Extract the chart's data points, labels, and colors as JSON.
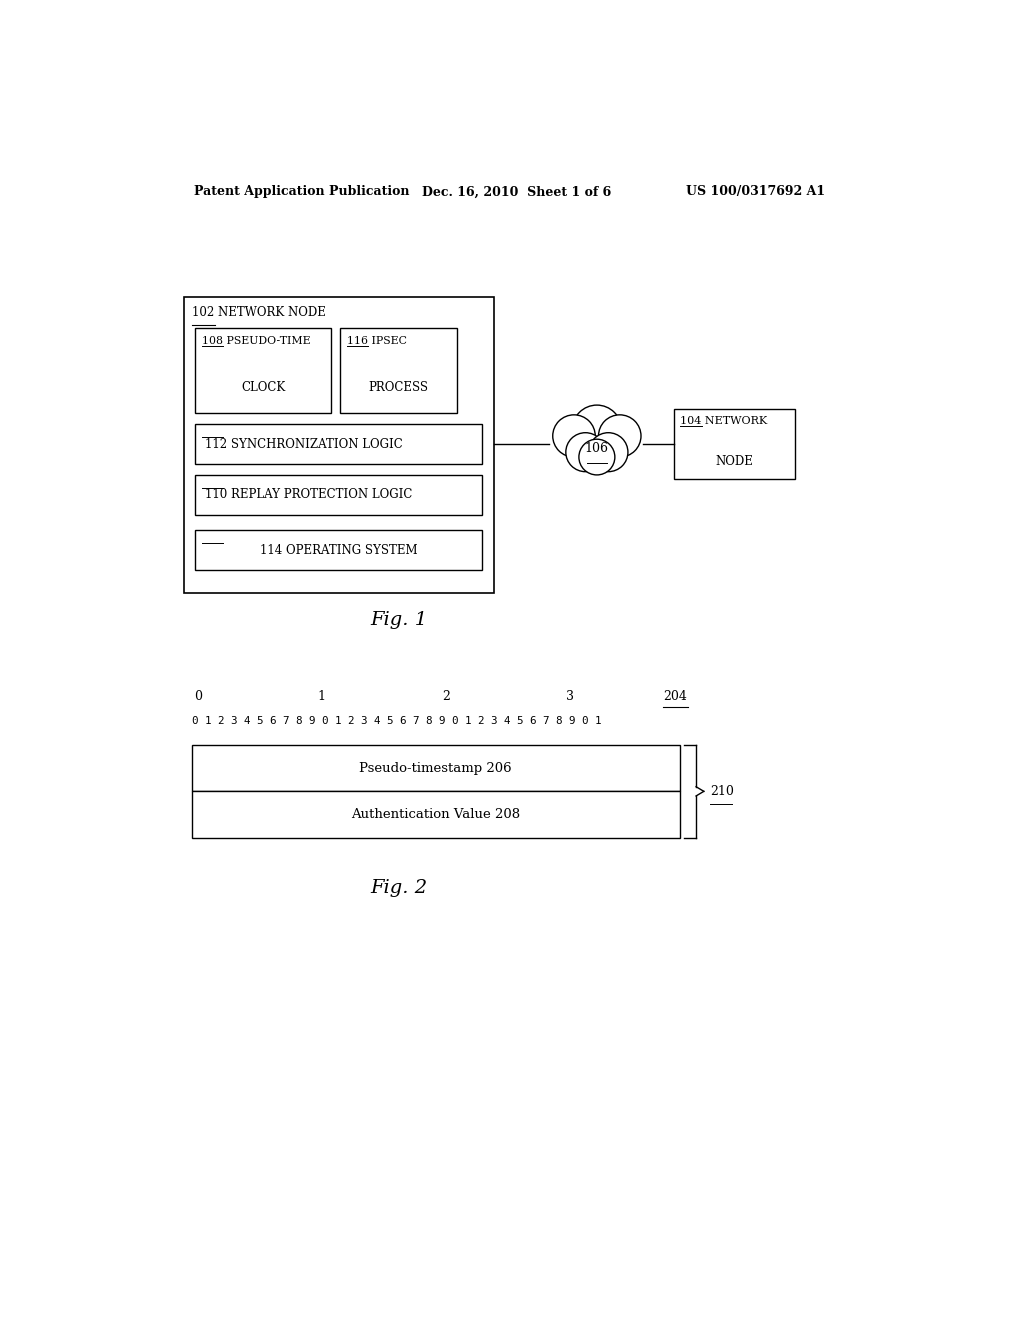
{
  "bg_color": "#ffffff",
  "header_left": "Patent Application Publication",
  "header_mid": "Dec. 16, 2010  Sheet 1 of 6",
  "header_right": "US 100/0317692 A1",
  "fig1_label": "Fig. 1",
  "fig2_label": "Fig. 2",
  "node102_label": "102 NETWORK NODE",
  "box108_line1": "108 PSEUDO-TIME",
  "box108_line2": "CLOCK",
  "box116_line1": "116 IPSEC",
  "box116_line2": "PROCESS",
  "box112_label": "112 SYNCHRONIZATION LOGIC",
  "box110_label": "110 REPLAY PROTECTION LOGIC",
  "box114_label": "114 OPERATING SYSTEM",
  "cloud106_label": "106",
  "node104_line1": "104 NETWORK",
  "node104_line2": "NODE",
  "fig2_204": "204",
  "fig2_pseudo": "Pseudo-timestamp 206",
  "fig2_auth": "Authentication Value 208",
  "fig2_210": "210"
}
